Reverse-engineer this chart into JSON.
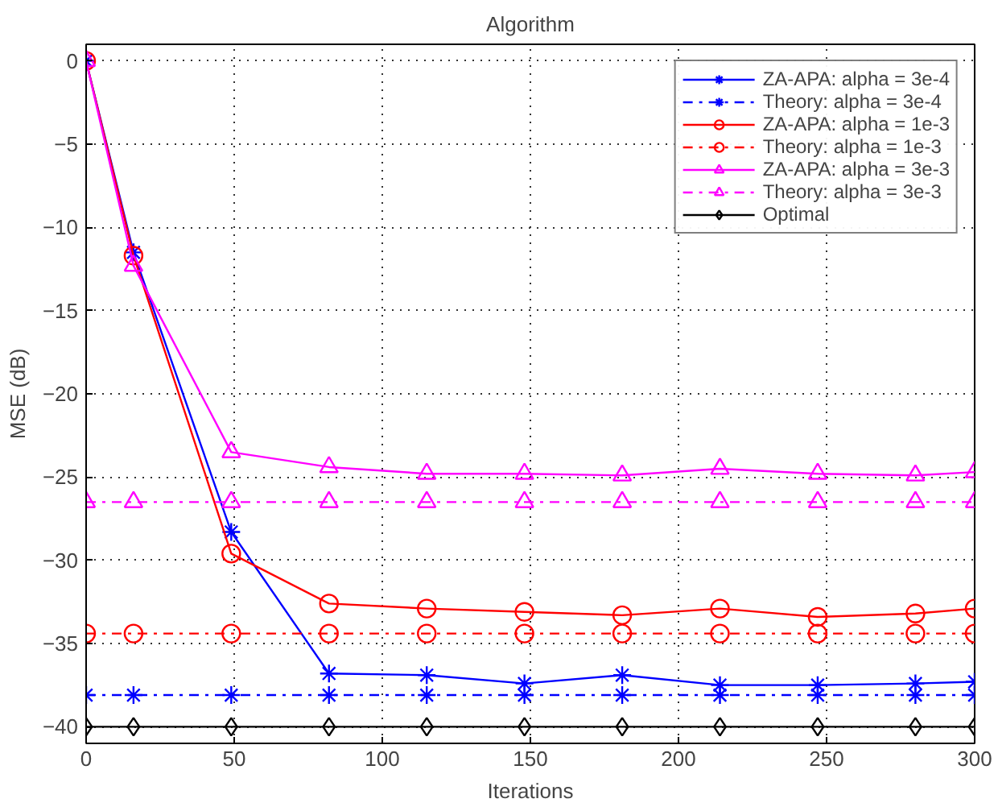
{
  "chart_data": {
    "type": "line",
    "title": "Algorithm",
    "xlabel": "Iterations",
    "ylabel": "MSE (dB)",
    "x": [
      0,
      16,
      49,
      82,
      115,
      148,
      181,
      214,
      247,
      280,
      300
    ],
    "xlim": [
      0,
      300
    ],
    "xticks": [
      0,
      50,
      100,
      150,
      200,
      250,
      300
    ],
    "ylim": [
      -41,
      1
    ],
    "yticks": [
      0,
      -5,
      -10,
      -15,
      -20,
      -25,
      -30,
      -35,
      -40
    ],
    "grid": true,
    "legend": "top right",
    "series": [
      {
        "name": "ZA-APA: alpha = 3e-4",
        "color": "#0000ff",
        "marker": "cross",
        "line_style": "solid",
        "values": [
          0,
          -11.5,
          -28.3,
          -36.8,
          -36.9,
          -37.4,
          -36.9,
          -37.5,
          -37.5,
          -37.4,
          -37.3
        ]
      },
      {
        "name": "Theory: alpha = 3e-4",
        "color": "#0000ff",
        "marker": "cross",
        "line_style": "dashed",
        "values": [
          -38.1,
          -38.1,
          -38.1,
          -38.1,
          -38.1,
          -38.1,
          -38.1,
          -38.1,
          -38.1,
          -38.1,
          -38.1
        ]
      },
      {
        "name": "ZA-APA: alpha = 1e-3",
        "color": "#ff0000",
        "marker": "circle",
        "line_style": "solid",
        "values": [
          0,
          -11.7,
          -29.6,
          -32.6,
          -32.9,
          -33.1,
          -33.3,
          -32.9,
          -33.4,
          -33.2,
          -32.9
        ]
      },
      {
        "name": "Theory: alpha = 1e-3",
        "color": "#ff0000",
        "marker": "circle",
        "line_style": "dashed",
        "values": [
          -34.4,
          -34.4,
          -34.4,
          -34.4,
          -34.4,
          -34.4,
          -34.4,
          -34.4,
          -34.4,
          -34.4,
          -34.4
        ]
      },
      {
        "name": "ZA-APA: alpha = 3e-3",
        "color": "#ff00ff",
        "marker": "triangle",
        "line_style": "solid",
        "values": [
          0,
          -12.3,
          -23.5,
          -24.4,
          -24.8,
          -24.8,
          -24.9,
          -24.5,
          -24.8,
          -24.9,
          -24.7
        ]
      },
      {
        "name": "Theory: alpha = 3e-3",
        "color": "#ff00ff",
        "marker": "triangle",
        "line_style": "dashed",
        "values": [
          -26.5,
          -26.5,
          -26.5,
          -26.5,
          -26.5,
          -26.5,
          -26.5,
          -26.5,
          -26.5,
          -26.5,
          -26.5
        ]
      },
      {
        "name": "Optimal",
        "color": "#000000",
        "marker": "diamond",
        "line_style": "solid",
        "values": [
          -40,
          -40,
          -40,
          -40,
          -40,
          -40,
          -40,
          -40,
          -40,
          -40,
          -40
        ]
      }
    ]
  }
}
